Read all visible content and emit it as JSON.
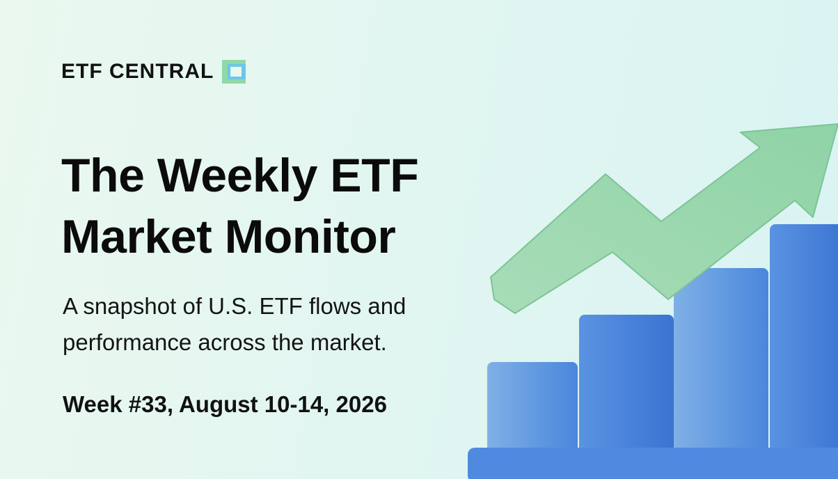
{
  "brand": "ETF CENTRAL",
  "title_lines": [
    "The Weekly ETF",
    "Market Monitor"
  ],
  "subtitle_lines": [
    "A snapshot of U.S. ETF flows and",
    "performance across the market."
  ],
  "week": "Week #33, August 10-14, 2026"
}
